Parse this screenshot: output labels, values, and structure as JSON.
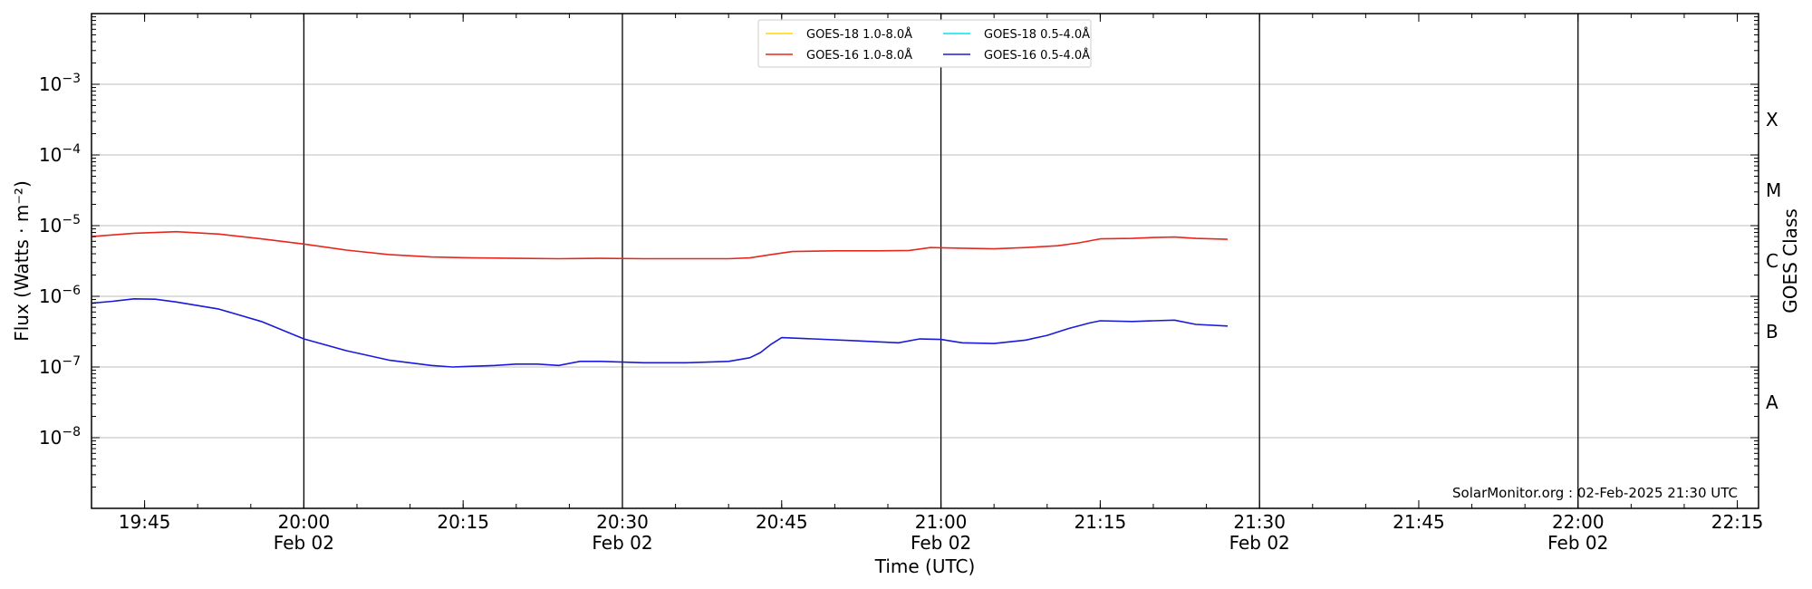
{
  "chart_data": {
    "type": "line",
    "title": "",
    "xlabel": "Time (UTC)",
    "ylabel": "Flux (Watts · m⁻²)",
    "y2label": "GOES Class",
    "yscale": "log",
    "ylim": [
      1e-09,
      0.01
    ],
    "xlim": [
      "2025-02-02 19:40",
      "2025-02-02 22:17"
    ],
    "grid": "horizontal at decades; vertical lines every 30 min",
    "legend_position": "top-center",
    "credit": "SolarMonitor.org : 02-Feb-2025 21:30 UTC",
    "y_ticks": [
      {
        "base": "10",
        "exp": "−3",
        "value": 0.001
      },
      {
        "base": "10",
        "exp": "−4",
        "value": 0.0001
      },
      {
        "base": "10",
        "exp": "−5",
        "value": 1e-05
      },
      {
        "base": "10",
        "exp": "−6",
        "value": 1e-06
      },
      {
        "base": "10",
        "exp": "−7",
        "value": 1e-07
      },
      {
        "base": "10",
        "exp": "−8",
        "value": 1e-08
      }
    ],
    "x_ticks": [
      {
        "time": "2025-02-02 19:45",
        "label": "19:45",
        "date": ""
      },
      {
        "time": "2025-02-02 20:00",
        "label": "20:00",
        "date": "Feb 02"
      },
      {
        "time": "2025-02-02 20:15",
        "label": "20:15",
        "date": ""
      },
      {
        "time": "2025-02-02 20:30",
        "label": "20:30",
        "date": "Feb 02"
      },
      {
        "time": "2025-02-02 20:45",
        "label": "20:45",
        "date": ""
      },
      {
        "time": "2025-02-02 21:00",
        "label": "21:00",
        "date": "Feb 02"
      },
      {
        "time": "2025-02-02 21:15",
        "label": "21:15",
        "date": ""
      },
      {
        "time": "2025-02-02 21:30",
        "label": "21:30",
        "date": "Feb 02"
      },
      {
        "time": "2025-02-02 21:45",
        "label": "21:45",
        "date": ""
      },
      {
        "time": "2025-02-02 22:00",
        "label": "22:00",
        "date": "Feb 02"
      },
      {
        "time": "2025-02-02 22:15",
        "label": "22:15",
        "date": ""
      }
    ],
    "goes_classes": [
      {
        "label": "X",
        "value": 0.000316
      },
      {
        "label": "M",
        "value": 3.16e-05
      },
      {
        "label": "C",
        "value": 3.16e-06
      },
      {
        "label": "B",
        "value": 3.16e-07
      },
      {
        "label": "A",
        "value": 3.16e-08
      }
    ],
    "series": [
      {
        "name": "GOES-18 1.0-8.0Å",
        "color": "#ffd700",
        "x": [],
        "y": []
      },
      {
        "name": "GOES-16 1.0-8.0Å",
        "color": "#e8261c",
        "x": [
          "2025-02-02 19:40",
          "2025-02-02 19:44",
          "2025-02-02 19:48",
          "2025-02-02 19:52",
          "2025-02-02 19:56",
          "2025-02-02 20:00",
          "2025-02-02 20:04",
          "2025-02-02 20:08",
          "2025-02-02 20:12",
          "2025-02-02 20:16",
          "2025-02-02 20:20",
          "2025-02-02 20:24",
          "2025-02-02 20:28",
          "2025-02-02 20:32",
          "2025-02-02 20:36",
          "2025-02-02 20:40",
          "2025-02-02 20:42",
          "2025-02-02 20:44",
          "2025-02-02 20:46",
          "2025-02-02 20:50",
          "2025-02-02 20:54",
          "2025-02-02 20:57",
          "2025-02-02 20:59",
          "2025-02-02 21:02",
          "2025-02-02 21:05",
          "2025-02-02 21:08",
          "2025-02-02 21:11",
          "2025-02-02 21:13",
          "2025-02-02 21:15",
          "2025-02-02 21:18",
          "2025-02-02 21:20",
          "2025-02-02 21:22",
          "2025-02-02 21:24",
          "2025-02-02 21:27"
        ],
        "y": [
          7e-06,
          7.8e-06,
          8.2e-06,
          7.6e-06,
          6.5e-06,
          5.5e-06,
          4.5e-06,
          3.9e-06,
          3.6e-06,
          3.5e-06,
          3.45e-06,
          3.4e-06,
          3.45e-06,
          3.4e-06,
          3.4e-06,
          3.4e-06,
          3.5e-06,
          3.9e-06,
          4.3e-06,
          4.4e-06,
          4.4e-06,
          4.45e-06,
          4.9e-06,
          4.8e-06,
          4.7e-06,
          4.9e-06,
          5.2e-06,
          5.7e-06,
          6.5e-06,
          6.6e-06,
          6.8e-06,
          6.9e-06,
          6.6e-06,
          6.4e-06
        ]
      },
      {
        "name": "GOES-18 0.5-4.0Å",
        "color": "#00e5e5",
        "x": [],
        "y": []
      },
      {
        "name": "GOES-16 0.5-4.0Å",
        "color": "#1a1adc",
        "x": [
          "2025-02-02 19:40",
          "2025-02-02 19:42",
          "2025-02-02 19:44",
          "2025-02-02 19:46",
          "2025-02-02 19:48",
          "2025-02-02 19:52",
          "2025-02-02 19:56",
          "2025-02-02 20:00",
          "2025-02-02 20:04",
          "2025-02-02 20:08",
          "2025-02-02 20:12",
          "2025-02-02 20:14",
          "2025-02-02 20:18",
          "2025-02-02 20:20",
          "2025-02-02 20:22",
          "2025-02-02 20:24",
          "2025-02-02 20:26",
          "2025-02-02 20:28",
          "2025-02-02 20:32",
          "2025-02-02 20:36",
          "2025-02-02 20:40",
          "2025-02-02 20:42",
          "2025-02-02 20:43",
          "2025-02-02 20:44",
          "2025-02-02 20:45",
          "2025-02-02 20:48",
          "2025-02-02 20:52",
          "2025-02-02 20:56",
          "2025-02-02 20:58",
          "2025-02-02 21:00",
          "2025-02-02 21:02",
          "2025-02-02 21:05",
          "2025-02-02 21:08",
          "2025-02-02 21:10",
          "2025-02-02 21:12",
          "2025-02-02 21:14",
          "2025-02-02 21:15",
          "2025-02-02 21:18",
          "2025-02-02 21:20",
          "2025-02-02 21:22",
          "2025-02-02 21:24",
          "2025-02-02 21:27"
        ],
        "y": [
          8e-07,
          8.5e-07,
          9.2e-07,
          9.1e-07,
          8.3e-07,
          6.6e-07,
          4.4e-07,
          2.5e-07,
          1.7e-07,
          1.25e-07,
          1.05e-07,
          1e-07,
          1.05e-07,
          1.1e-07,
          1.1e-07,
          1.05e-07,
          1.2e-07,
          1.2e-07,
          1.15e-07,
          1.15e-07,
          1.2e-07,
          1.35e-07,
          1.6e-07,
          2.1e-07,
          2.6e-07,
          2.5e-07,
          2.35e-07,
          2.2e-07,
          2.5e-07,
          2.45e-07,
          2.2e-07,
          2.15e-07,
          2.4e-07,
          2.8e-07,
          3.5e-07,
          4.2e-07,
          4.5e-07,
          4.4e-07,
          4.5e-07,
          4.6e-07,
          4e-07,
          3.8e-07
        ]
      }
    ]
  }
}
